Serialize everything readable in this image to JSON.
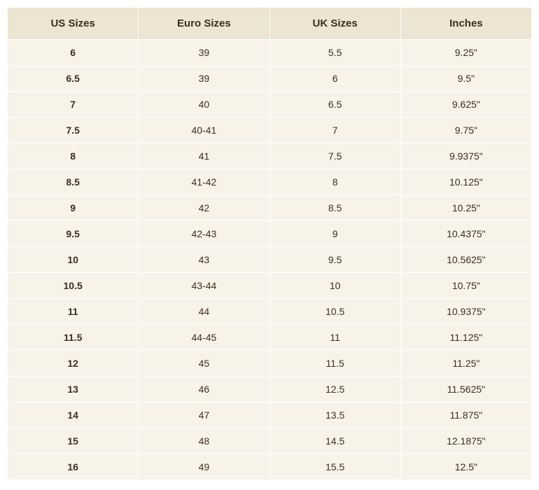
{
  "table": {
    "type": "table",
    "columns": [
      "US Sizes",
      "Euro Sizes",
      "UK Sizes",
      "Inches"
    ],
    "rows": [
      [
        "6",
        "39",
        "5.5",
        "9.25\""
      ],
      [
        "6.5",
        "39",
        "6",
        "9.5\""
      ],
      [
        "7",
        "40",
        "6.5",
        "9.625\""
      ],
      [
        "7.5",
        "40-41",
        "7",
        "9.75\""
      ],
      [
        "8",
        "41",
        "7.5",
        "9.9375\""
      ],
      [
        "8.5",
        "41-42",
        "8",
        "10.125\""
      ],
      [
        "9",
        "42",
        "8.5",
        "10.25\""
      ],
      [
        "9.5",
        "42-43",
        "9",
        "10.4375\""
      ],
      [
        "10",
        "43",
        "9.5",
        "10.5625\""
      ],
      [
        "10.5",
        "43-44",
        "10",
        "10.75\""
      ],
      [
        "11",
        "44",
        "10.5",
        "10.9375\""
      ],
      [
        "11.5",
        "44-45",
        "11",
        "11.125\""
      ],
      [
        "12",
        "45",
        "11.5",
        "11.25\""
      ],
      [
        "13",
        "46",
        "12.5",
        "11.5625\""
      ],
      [
        "14",
        "47",
        "13.5",
        "11.875\""
      ],
      [
        "15",
        "48",
        "14.5",
        "12.1875\""
      ],
      [
        "16",
        "49",
        "15.5",
        "12.5\""
      ]
    ],
    "header_bg": "#ede4d1",
    "row_bg": "#f7f3e9",
    "border_color": "#ffffff",
    "text_color": "#3a2f1f",
    "header_fontsize": 15,
    "cell_fontsize": 14,
    "first_col_bold": true,
    "col_count": 4
  }
}
